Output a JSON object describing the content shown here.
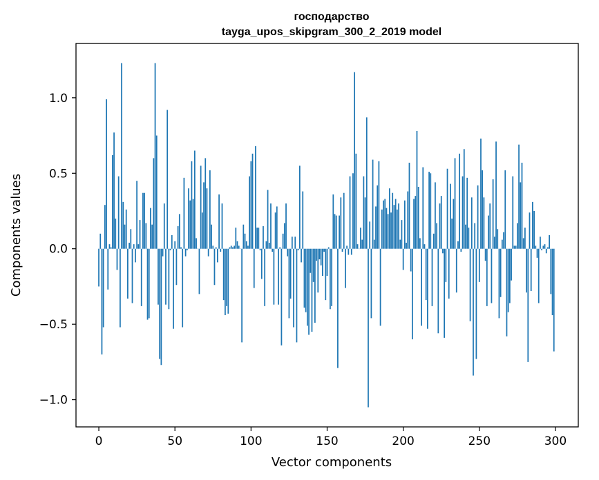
{
  "chart_data": {
    "type": "bar",
    "title": "господарство",
    "subtitle": "tayga_upos_skipgram_300_2_2019 model",
    "xlabel": "Vector components",
    "ylabel": "Components values",
    "xlim": [
      -15,
      315
    ],
    "ylim": [
      -1.18,
      1.36
    ],
    "xticks": [
      0,
      50,
      100,
      150,
      200,
      250,
      300
    ],
    "xtick_labels": [
      "0",
      "50",
      "100",
      "150",
      "200",
      "250",
      "300"
    ],
    "yticks": [
      -1.0,
      -0.5,
      0.0,
      0.5,
      1.0
    ],
    "ytick_labels": [
      "−1.0",
      "−0.5",
      "0.0",
      "0.5",
      "1.0"
    ],
    "color": "#1f77b4",
    "values": [
      -0.25,
      0.1,
      -0.7,
      -0.52,
      0.29,
      0.99,
      -0.27,
      0.03,
      0.01,
      0.62,
      0.77,
      0.2,
      -0.14,
      0.48,
      -0.52,
      1.23,
      0.31,
      0.16,
      0.26,
      -0.33,
      0.04,
      0.13,
      -0.36,
      0.03,
      -0.09,
      0.45,
      0.03,
      0.19,
      -0.38,
      0.37,
      0.37,
      0.17,
      -0.47,
      -0.46,
      0.27,
      0.16,
      0.6,
      1.23,
      0.75,
      -0.37,
      -0.73,
      -0.77,
      -0.05,
      0.3,
      -0.37,
      0.92,
      -0.4,
      -0.01,
      0.09,
      -0.53,
      0.05,
      -0.24,
      0.15,
      0.23,
      0.01,
      -0.52,
      0.47,
      -0.05,
      -0.01,
      0.4,
      0.32,
      0.58,
      0.33,
      0.65,
      0.07,
      0.0,
      -0.3,
      0.55,
      0.24,
      0.44,
      0.6,
      0.4,
      -0.05,
      0.52,
      0.16,
      0.02,
      -0.24,
      0.01,
      -0.09,
      0.36,
      -0.02,
      0.3,
      -0.34,
      -0.44,
      -0.38,
      -0.43,
      0.01,
      0.02,
      0.01,
      0.02,
      0.14,
      0.05,
      0.02,
      0.0,
      -0.62,
      0.16,
      0.1,
      0.05,
      0.02,
      0.48,
      0.58,
      0.63,
      -0.26,
      0.68,
      0.14,
      0.14,
      -0.01,
      -0.2,
      0.15,
      -0.38,
      0.05,
      0.39,
      0.04,
      0.3,
      -0.02,
      -0.37,
      0.24,
      0.28,
      -0.37,
      0.01,
      -0.64,
      0.1,
      0.17,
      0.3,
      -0.05,
      -0.46,
      -0.33,
      0.08,
      -0.52,
      0.08,
      -0.62,
      -0.01,
      0.55,
      -0.09,
      0.38,
      -0.39,
      -0.42,
      -0.51,
      -0.57,
      -0.16,
      -0.55,
      -0.22,
      -0.49,
      -0.08,
      -0.29,
      -0.07,
      -0.11,
      -0.18,
      -0.02,
      -0.34,
      -0.18,
      0.01,
      -0.4,
      -0.38,
      0.36,
      0.23,
      0.22,
      -0.79,
      0.22,
      0.34,
      -0.02,
      0.37,
      -0.26,
      0.02,
      -0.04,
      0.48,
      -0.04,
      0.5,
      1.17,
      0.63,
      0.03,
      0.0,
      0.14,
      0.06,
      0.48,
      0.34,
      0.87,
      -1.05,
      0.18,
      -0.46,
      0.59,
      0.06,
      0.28,
      0.42,
      0.58,
      -0.51,
      0.26,
      0.32,
      0.33,
      0.27,
      0.23,
      0.4,
      0.24,
      0.37,
      0.29,
      0.33,
      0.26,
      0.3,
      0.06,
      0.19,
      -0.14,
      0.32,
      0.04,
      0.38,
      0.57,
      -0.15,
      -0.6,
      0.33,
      0.35,
      0.78,
      0.41,
      0.07,
      -0.51,
      0.54,
      0.03,
      -0.34,
      -0.53,
      0.51,
      0.5,
      -0.38,
      0.1,
      0.44,
      0.17,
      -0.56,
      0.3,
      0.35,
      -0.03,
      -0.59,
      -0.22,
      0.53,
      -0.33,
      0.43,
      0.2,
      0.33,
      0.6,
      -0.29,
      0.05,
      0.63,
      -0.02,
      0.48,
      0.66,
      0.16,
      0.47,
      0.14,
      -0.48,
      0.34,
      -0.84,
      0.17,
      -0.73,
      0.42,
      -0.22,
      0.73,
      0.52,
      0.34,
      -0.08,
      -0.38,
      0.22,
      0.3,
      -0.36,
      0.46,
      0.08,
      0.71,
      0.13,
      -0.46,
      -0.32,
      0.06,
      0.11,
      0.52,
      -0.58,
      -0.42,
      -0.36,
      -0.21,
      0.48,
      0.02,
      0.02,
      0.17,
      0.69,
      0.44,
      0.57,
      0.07,
      0.14,
      -0.29,
      -0.75,
      0.24,
      -0.28,
      0.31,
      0.25,
      0.02,
      -0.06,
      -0.36,
      0.08,
      -0.01,
      0.02,
      0.03,
      -0.03,
      0.01,
      0.09,
      -0.3,
      -0.44,
      -0.68
    ]
  }
}
